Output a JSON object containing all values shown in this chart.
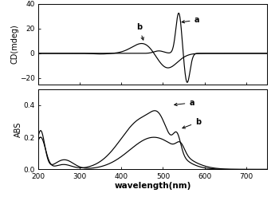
{
  "cd_ylim": [
    -25,
    40
  ],
  "cd_yticks": [
    -20,
    0,
    20,
    40
  ],
  "abs_ylim": [
    0.0,
    0.5
  ],
  "abs_yticks": [
    0.0,
    0.2,
    0.4
  ],
  "xlim": [
    200,
    750
  ],
  "xticks": [
    200,
    300,
    400,
    500,
    600,
    700
  ],
  "xlabel": "wavelength(nm)",
  "cd_ylabel": "CD(mdeg)",
  "abs_ylabel": "ABS",
  "background_color": "#ffffff",
  "line_color": "#000000"
}
